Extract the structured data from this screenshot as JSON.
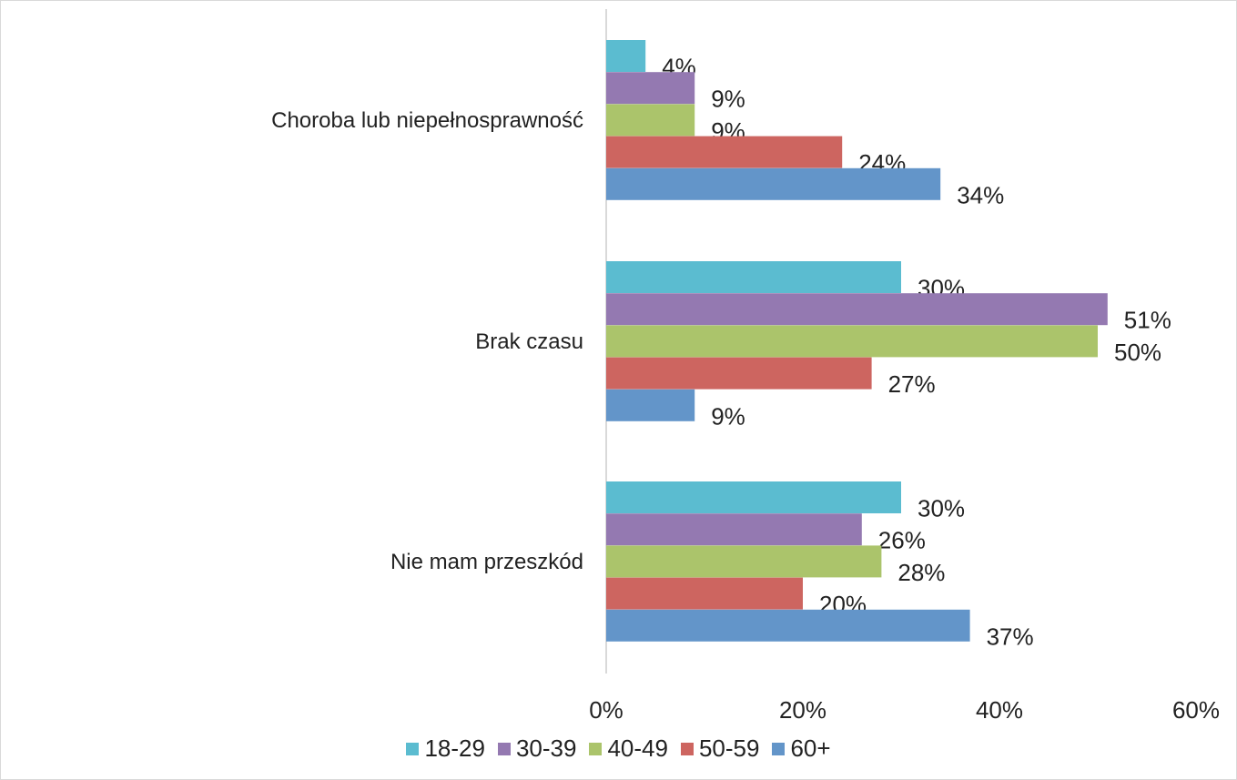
{
  "chart_data": {
    "type": "bar",
    "orientation": "horizontal",
    "categories": [
      "Choroba lub niepełnosprawność",
      "Brak czasu",
      "Nie mam przeszkód"
    ],
    "series": [
      {
        "name": "18-29",
        "color": "#5bbcd0",
        "values": [
          4,
          30,
          30
        ]
      },
      {
        "name": "30-39",
        "color": "#9479b1",
        "values": [
          9,
          51,
          26
        ]
      },
      {
        "name": "40-49",
        "color": "#abc46b",
        "values": [
          9,
          50,
          28
        ]
      },
      {
        "name": "50-59",
        "color": "#cd6560",
        "values": [
          24,
          27,
          20
        ]
      },
      {
        "name": "60+",
        "color": "#6395c9",
        "values": [
          34,
          9,
          37
        ]
      }
    ],
    "data_labels": [
      [
        "4%",
        "30%",
        "30%"
      ],
      [
        "9%",
        "51%",
        "26%"
      ],
      [
        "9%",
        "50%",
        "28%"
      ],
      [
        "24%",
        "27%",
        "20%"
      ],
      [
        "34%",
        "9%",
        "37%"
      ]
    ],
    "x_ticks": [
      "0%",
      "20%",
      "40%",
      "60%"
    ],
    "xlim": [
      0,
      60
    ],
    "grid": false,
    "legend_position": "bottom"
  }
}
